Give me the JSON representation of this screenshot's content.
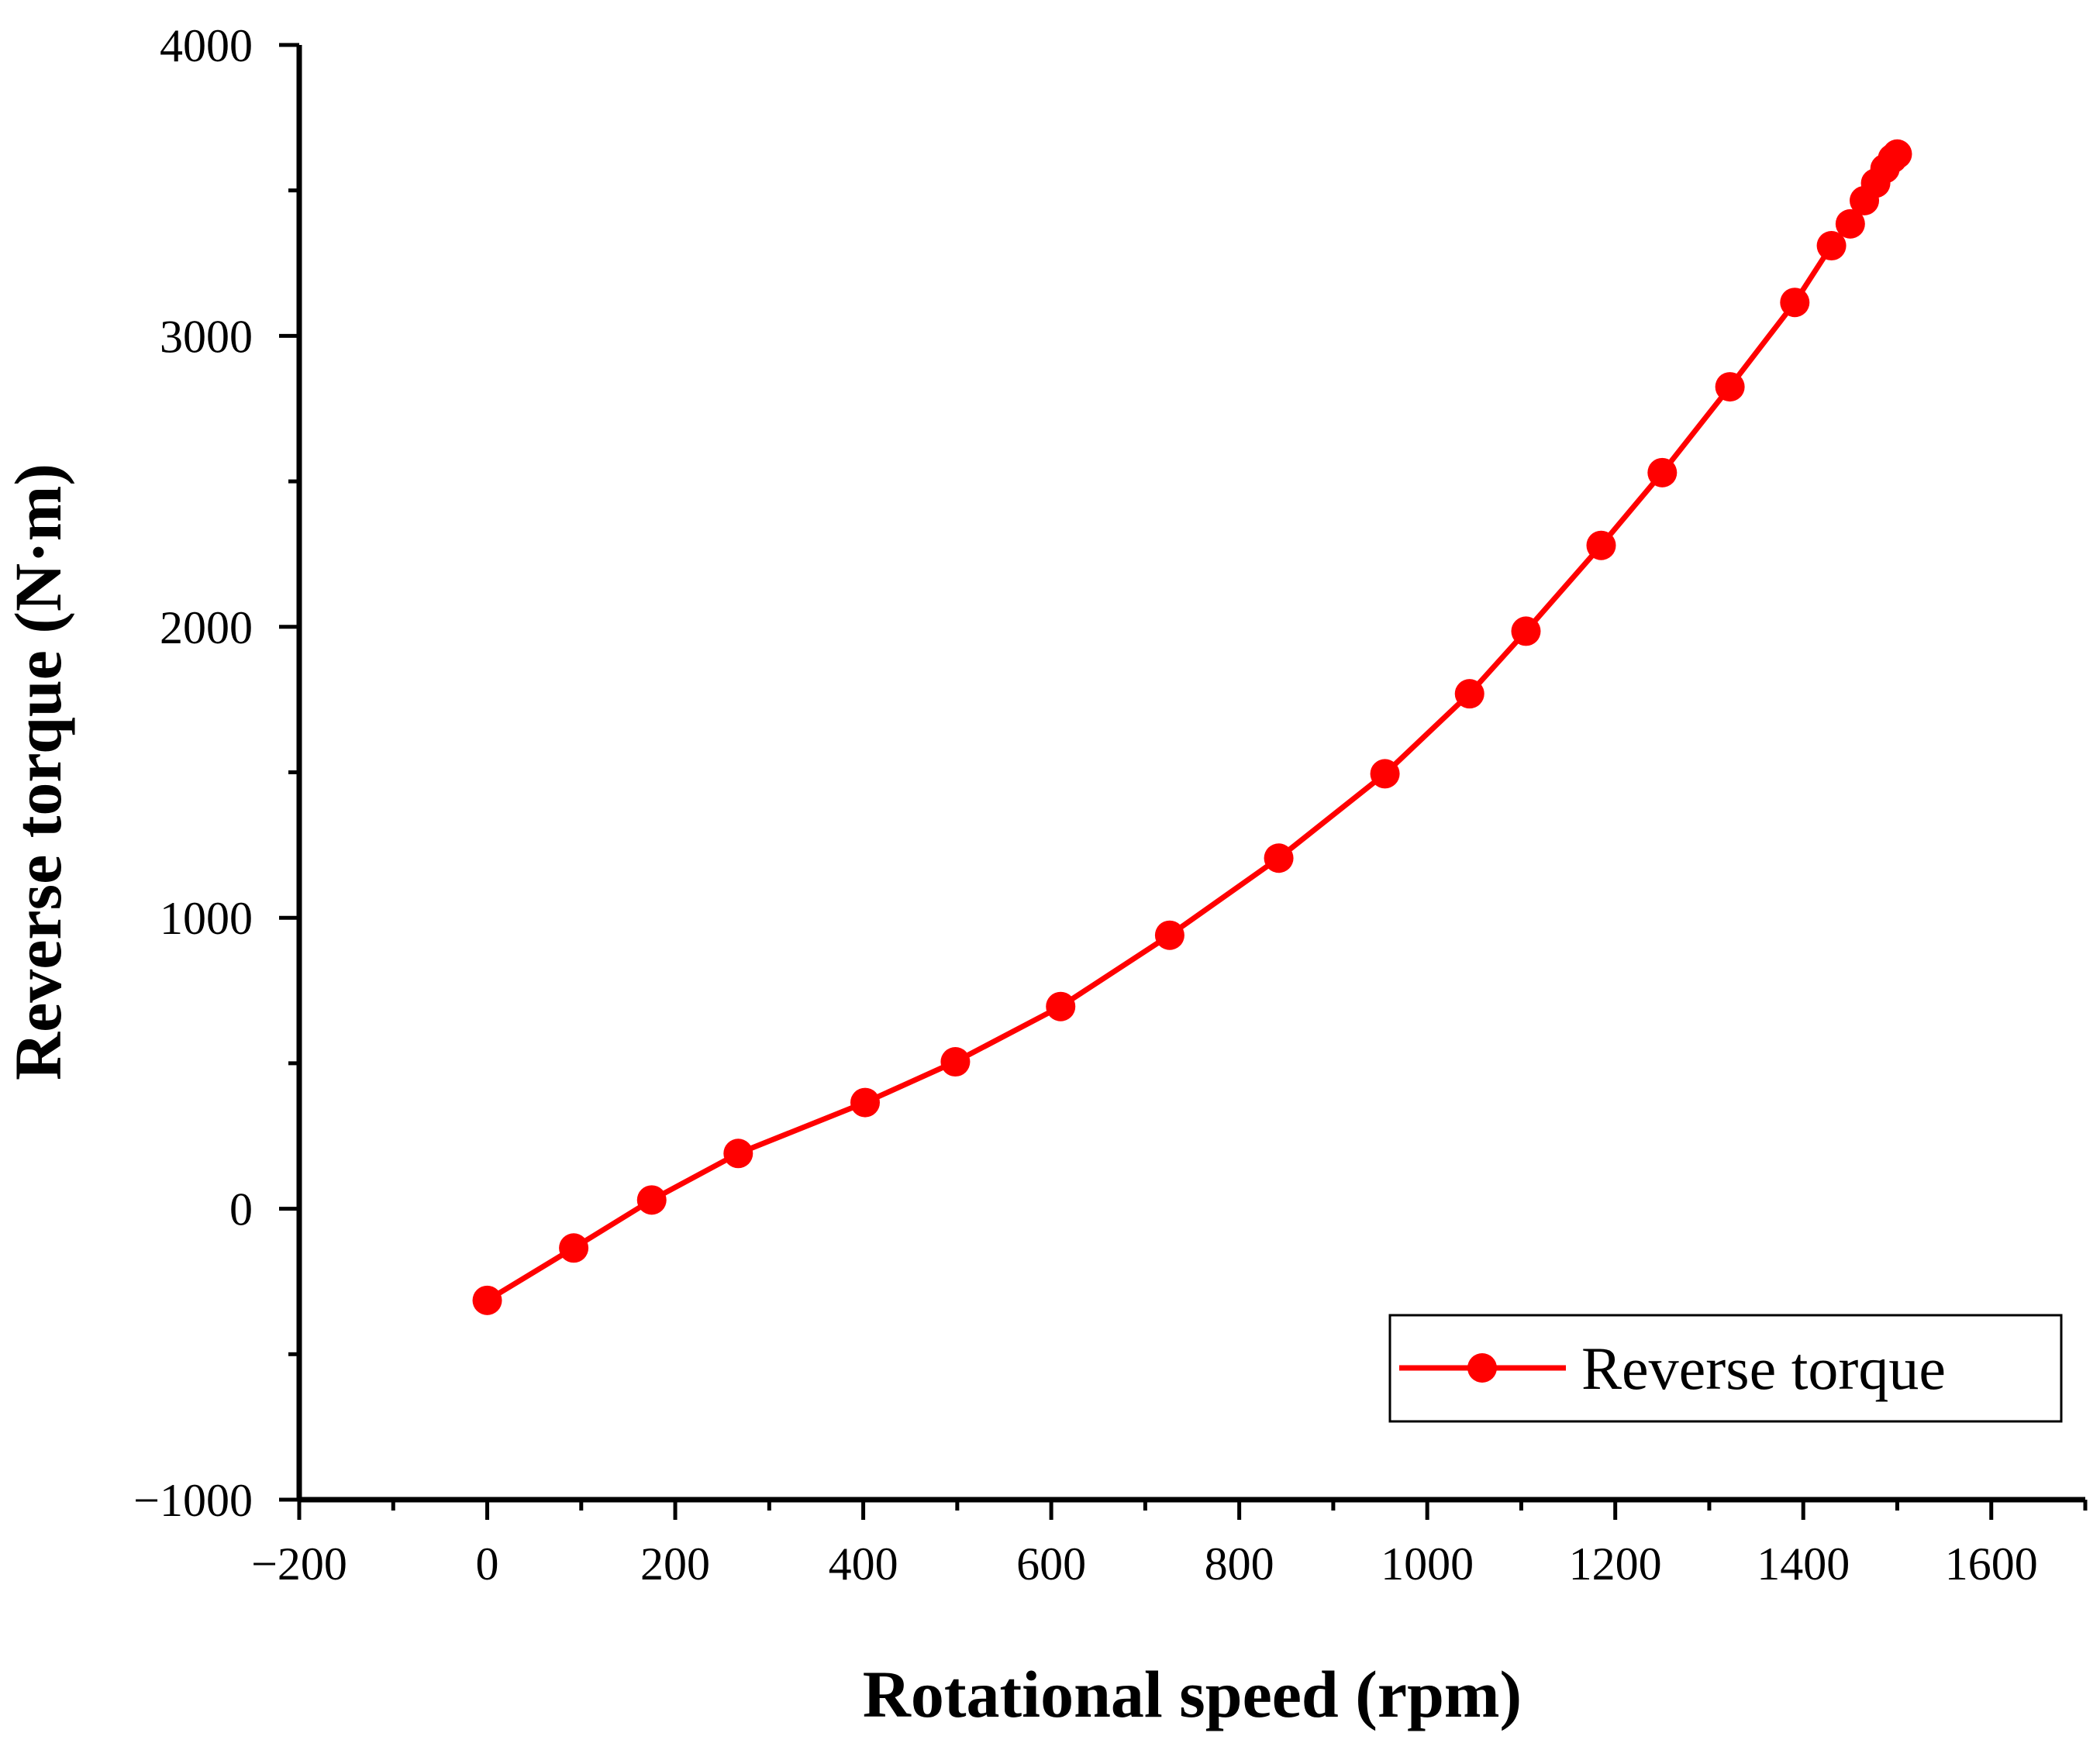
{
  "chart_data": {
    "type": "line",
    "title": "",
    "xlabel": "Rotational speed (rpm)",
    "ylabel": "Reverse torque (N·m)",
    "xlim": [
      -200,
      1700
    ],
    "ylim": [
      -1000,
      4000
    ],
    "x_ticks": [
      -200,
      0,
      200,
      400,
      600,
      800,
      1000,
      1200,
      1400,
      1600
    ],
    "x_tick_labels": [
      "−200",
      "0",
      "200",
      "400",
      "600",
      "800",
      "1000",
      "1200",
      "1400",
      "1600"
    ],
    "y_ticks": [
      -1000,
      0,
      1000,
      2000,
      3000,
      4000
    ],
    "y_tick_labels": [
      "−1000",
      "0",
      "1000",
      "2000",
      "3000",
      "4000"
    ],
    "grid": false,
    "legend_position": "bottom-right",
    "series": [
      {
        "name": "Reverse torque",
        "color": "#ff0000",
        "marker": "circle",
        "x": [
          0,
          92,
          175,
          267,
          402,
          498,
          610,
          726,
          842,
          955,
          1045,
          1105,
          1185,
          1250,
          1322,
          1391,
          1430,
          1450,
          1465,
          1477,
          1487,
          1495,
          1500
        ],
        "y": [
          -315,
          -135,
          30,
          190,
          365,
          505,
          695,
          940,
          1205,
          1495,
          1770,
          1985,
          2280,
          2530,
          2825,
          3115,
          3310,
          3385,
          3465,
          3525,
          3575,
          3610,
          3625
        ]
      }
    ]
  }
}
